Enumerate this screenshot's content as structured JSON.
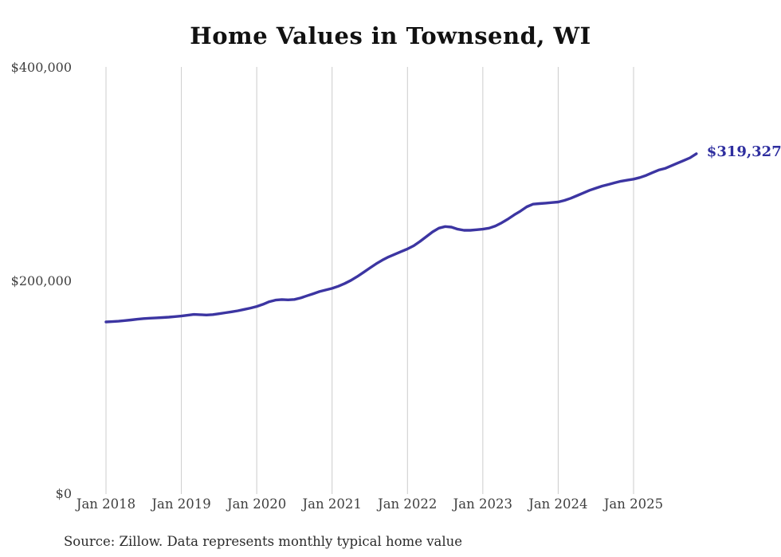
{
  "header": {
    "title": "Home Values in Townsend, WI"
  },
  "footer": {
    "source_note": "Source: Zillow. Data represents monthly typical home value"
  },
  "chart_data": {
    "type": "line",
    "title": "Home Values in Townsend, WI",
    "xlabel": "",
    "ylabel": "",
    "ylim": [
      0,
      400000
    ],
    "y_tick_values": [
      0,
      200000,
      400000
    ],
    "y_tick_labels": [
      "$0",
      "$200,000",
      "$400,000"
    ],
    "x_tick_labels": [
      "Jan 2018",
      "Jan 2019",
      "Jan 2020",
      "Jan 2021",
      "Jan 2022",
      "Jan 2023",
      "Jan 2024",
      "Jan 2025"
    ],
    "grid": "vertical-only",
    "legend": "none",
    "series": [
      {
        "name": "Monthly typical home value",
        "start": "2018-01",
        "end": "2025-11",
        "frequency": "monthly",
        "values": [
          161500,
          161800,
          162200,
          162800,
          163400,
          164000,
          164600,
          165000,
          165300,
          165600,
          166000,
          166500,
          167000,
          167800,
          168500,
          168300,
          168000,
          168400,
          169200,
          170100,
          171000,
          172000,
          173200,
          174500,
          176000,
          178000,
          180500,
          182000,
          182500,
          182200,
          182600,
          184000,
          186000,
          188000,
          190000,
          191500,
          193000,
          195000,
          197500,
          200500,
          204000,
          208000,
          212000,
          216000,
          219500,
          222500,
          225000,
          227500,
          230000,
          233000,
          237000,
          241500,
          246000,
          249500,
          251000,
          250500,
          248500,
          247500,
          247500,
          248000,
          248500,
          249500,
          251500,
          254500,
          258000,
          262000,
          265500,
          269500,
          272000,
          272500,
          273000,
          273500,
          274000,
          275500,
          277500,
          280000,
          282500,
          285000,
          287000,
          289000,
          290500,
          292000,
          293500,
          294500,
          295500,
          297000,
          299000,
          301500,
          304000,
          305500,
          308000,
          310500,
          313000,
          315500,
          319327
        ]
      }
    ],
    "annotation": {
      "text": "$319,327",
      "value": 319327,
      "position": "end-of-line"
    },
    "colors": {
      "line": "#3c35a2",
      "annotation": "#2e2e9f",
      "grid": "#cccccc",
      "tick_labels": "#3f3f3f",
      "title": "#111111",
      "source": "#2b2b2b",
      "background": "#ffffff"
    }
  }
}
